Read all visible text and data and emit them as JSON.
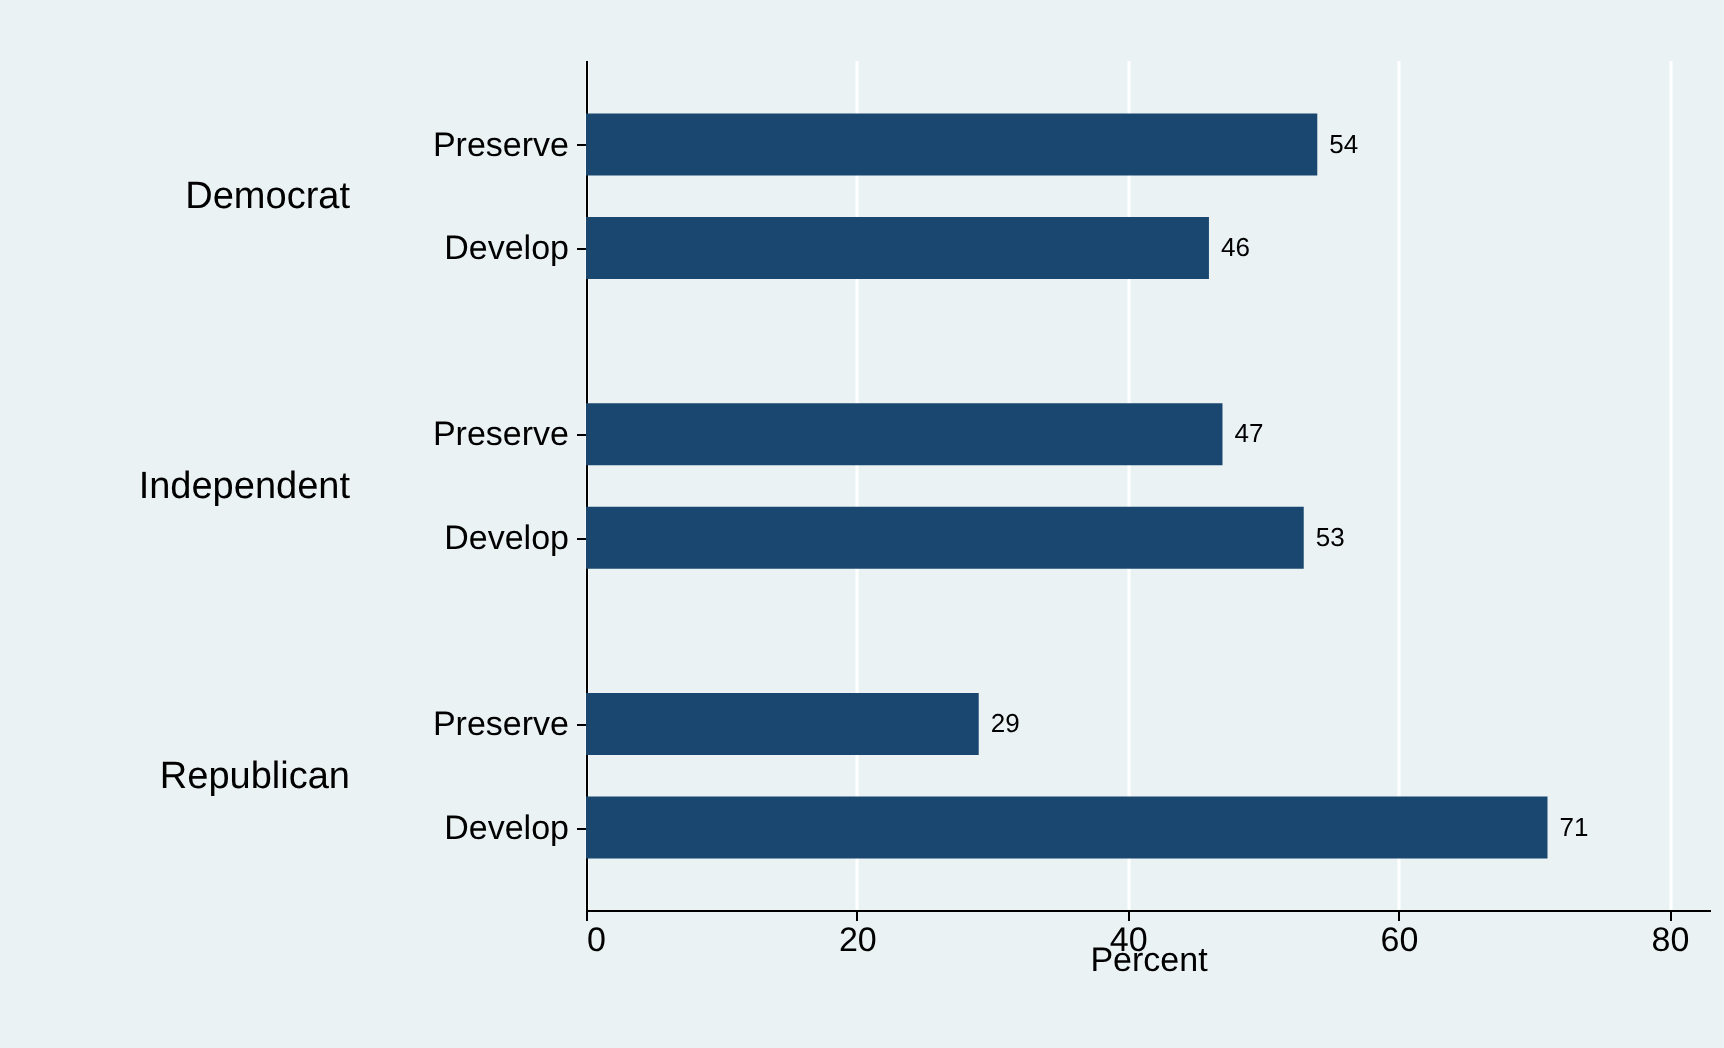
{
  "chart_data": {
    "type": "bar",
    "orientation": "horizontal",
    "categories": [
      "Preserve",
      "Develop",
      "Preserve",
      "Develop",
      "Preserve",
      "Develop"
    ],
    "values": [
      54,
      46,
      47,
      53,
      29,
      71
    ],
    "color": "#1a476f",
    "data_labels": true,
    "annotations": [
      "Democrat",
      "Independent",
      "Republican"
    ],
    "xlabel": "Percent",
    "xlim": [
      0,
      83
    ],
    "xticks": [
      0,
      20,
      40,
      60,
      80
    ],
    "grid": "x"
  }
}
